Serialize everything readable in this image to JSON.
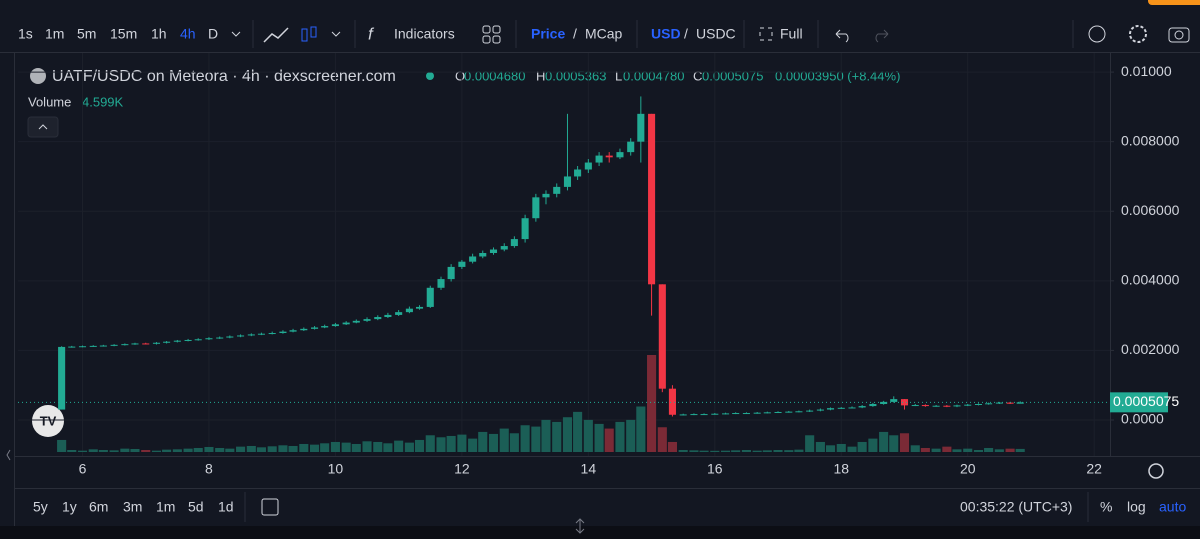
{
  "toolbar": {
    "intervals": [
      "1s",
      "1m",
      "5m",
      "15m",
      "1h",
      "4h",
      "D"
    ],
    "active_interval": "4h",
    "indicators": "Indicators",
    "price": "Price",
    "slash": "/",
    "mcap": "MCap",
    "usd": "USD",
    "usdc": "USDC",
    "full": "Full"
  },
  "legend": {
    "title": "UATF/USDC on Meteora · 4h · dexscreener.com",
    "o_key": "O",
    "o": "0.0004680",
    "h_key": "H",
    "h": "0.0005363",
    "l_key": "L",
    "l": "0.0004780",
    "c_key": "C",
    "c": "0.0005075",
    "change": "0.00003950 (+8.44%)",
    "volume_key": "Volume",
    "volume": "4.599K"
  },
  "price_tag": "0.0005075",
  "bottom_bar": {
    "ranges": [
      "5y",
      "1y",
      "6m",
      "3m",
      "1m",
      "5d",
      "1d"
    ],
    "clock": "00:35:22 (UTC+3)",
    "percent": "%",
    "log": "log",
    "auto": "auto"
  },
  "chart_data": {
    "type": "candlestick",
    "up_color": "#22ab94",
    "down_color": "#f23645",
    "volume_up_color": "#1b5e56",
    "volume_down_color": "#7b2a36",
    "xlim": [
      4.98,
      22.25
    ],
    "xticks": [
      6,
      8,
      10,
      12,
      14,
      16,
      18,
      20,
      22
    ],
    "ylim": [
      -0.00092,
      0.01029
    ],
    "yticks": [
      {
        "value": 0,
        "label": "0.0000"
      },
      {
        "value": 0.002,
        "label": "0.002000"
      },
      {
        "value": 0.004,
        "label": "0.004000"
      },
      {
        "value": 0.006,
        "label": "0.006000"
      },
      {
        "value": 0.008,
        "label": "0.008000"
      },
      {
        "value": 0.01,
        "label": "0.01000"
      }
    ],
    "x": [
      5.67,
      5.83,
      6.0,
      6.17,
      6.33,
      6.5,
      6.67,
      6.83,
      7.0,
      7.17,
      7.33,
      7.5,
      7.67,
      7.83,
      8.0,
      8.17,
      8.33,
      8.5,
      8.67,
      8.83,
      9.0,
      9.17,
      9.33,
      9.5,
      9.67,
      9.83,
      10.0,
      10.17,
      10.33,
      10.5,
      10.67,
      10.83,
      11.0,
      11.17,
      11.33,
      11.5,
      11.67,
      11.83,
      12.0,
      12.17,
      12.33,
      12.5,
      12.67,
      12.83,
      13.0,
      13.17,
      13.33,
      13.5,
      13.67,
      13.83,
      14.0,
      14.17,
      14.33,
      14.5,
      14.67,
      14.83,
      15.0,
      15.17,
      15.33,
      15.5,
      15.67,
      15.83,
      16.0,
      16.17,
      16.33,
      16.5,
      16.67,
      16.83,
      17.0,
      17.17,
      17.33,
      17.5,
      17.67,
      17.83,
      18.0,
      18.17,
      18.33,
      18.5,
      18.67,
      18.83,
      19.0,
      19.17,
      19.33,
      19.5,
      19.67,
      19.83,
      20.0,
      20.17,
      20.33,
      20.5,
      20.67,
      20.83
    ],
    "open": [
      0.0003,
      0.0021,
      0.00211,
      0.00212,
      0.00213,
      0.00214,
      0.00216,
      0.00218,
      0.0022,
      0.00219,
      0.00222,
      0.00225,
      0.00228,
      0.0023,
      0.00232,
      0.00235,
      0.00237,
      0.0024,
      0.00243,
      0.00246,
      0.00248,
      0.0025,
      0.00254,
      0.00258,
      0.00262,
      0.00266,
      0.0027,
      0.00275,
      0.0028,
      0.00285,
      0.0029,
      0.00296,
      0.00302,
      0.0031,
      0.0032,
      0.00325,
      0.0038,
      0.00405,
      0.0044,
      0.00455,
      0.0047,
      0.0048,
      0.0049,
      0.005,
      0.0052,
      0.0058,
      0.0064,
      0.0065,
      0.0067,
      0.007,
      0.0072,
      0.0074,
      0.0076,
      0.00755,
      0.0077,
      0.008,
      0.0088,
      0.0039,
      0.0009,
      0.00015,
      0.00016,
      0.00017,
      0.00017,
      0.00018,
      0.00019,
      0.0002,
      0.0002,
      0.00021,
      0.00022,
      0.00023,
      0.00024,
      0.00025,
      0.00027,
      0.0003,
      0.00034,
      0.00035,
      0.00036,
      0.0004,
      0.00046,
      0.00052,
      0.0006,
      0.00042,
      0.00043,
      0.0004,
      0.00041,
      0.00039,
      0.00042,
      0.00044,
      0.00046,
      0.00048,
      0.0005,
      0.000468
    ],
    "high": [
      0.00212,
      0.00213,
      0.00214,
      0.00215,
      0.00216,
      0.00218,
      0.0022,
      0.00222,
      0.00222,
      0.00224,
      0.00227,
      0.0023,
      0.00233,
      0.00235,
      0.00238,
      0.0024,
      0.00243,
      0.00246,
      0.00249,
      0.00251,
      0.00254,
      0.00258,
      0.00262,
      0.00266,
      0.0027,
      0.00274,
      0.00279,
      0.00284,
      0.00289,
      0.00295,
      0.00301,
      0.00308,
      0.00316,
      0.00326,
      0.0033,
      0.00386,
      0.00412,
      0.00448,
      0.0046,
      0.00478,
      0.00487,
      0.00496,
      0.00508,
      0.00528,
      0.0059,
      0.0065,
      0.0066,
      0.0068,
      0.0088,
      0.0073,
      0.0075,
      0.0077,
      0.0077,
      0.0078,
      0.0081,
      0.0093,
      0.0088,
      0.0039,
      0.001,
      0.00018,
      0.00019,
      0.00019,
      0.0002,
      0.00021,
      0.00022,
      0.00022,
      0.00023,
      0.00024,
      0.00025,
      0.00026,
      0.00027,
      0.0003,
      0.00033,
      0.00036,
      0.00037,
      0.00039,
      0.00043,
      0.00049,
      0.00055,
      0.00068,
      0.0006,
      0.00046,
      0.00045,
      0.00043,
      0.00043,
      0.00044,
      0.00046,
      0.00048,
      0.0005,
      0.00052,
      0.00052,
      0.0005363
    ],
    "low": [
      0.0003,
      0.00208,
      0.00209,
      0.0021,
      0.00211,
      0.00212,
      0.00214,
      0.00216,
      0.00217,
      0.00217,
      0.0022,
      0.00223,
      0.00226,
      0.00228,
      0.0023,
      0.00233,
      0.00235,
      0.00238,
      0.00241,
      0.00244,
      0.00246,
      0.00248,
      0.00252,
      0.00256,
      0.0026,
      0.00264,
      0.00268,
      0.00273,
      0.00278,
      0.00282,
      0.00287,
      0.00293,
      0.00299,
      0.00307,
      0.00317,
      0.00322,
      0.00374,
      0.00398,
      0.00434,
      0.0045,
      0.00465,
      0.00475,
      0.00485,
      0.00495,
      0.0051,
      0.0057,
      0.0062,
      0.0064,
      0.0066,
      0.0069,
      0.0071,
      0.0073,
      0.0074,
      0.0075,
      0.0076,
      0.0074,
      0.003,
      0.0008,
      0.0001,
      0.00013,
      0.00014,
      0.00015,
      0.00015,
      0.00016,
      0.00017,
      0.00018,
      0.00018,
      0.00019,
      0.0002,
      0.00021,
      0.00022,
      0.00023,
      0.00025,
      0.00028,
      0.00032,
      0.00033,
      0.00034,
      0.00038,
      0.00044,
      0.0005,
      0.0003,
      0.0004,
      0.00038,
      0.00038,
      0.00037,
      0.00037,
      0.0004,
      0.00042,
      0.00044,
      0.00046,
      0.00046,
      0.000478
    ],
    "close": [
      0.0021,
      0.00211,
      0.00212,
      0.00213,
      0.00214,
      0.00216,
      0.00218,
      0.0022,
      0.00219,
      0.00222,
      0.00225,
      0.00228,
      0.0023,
      0.00232,
      0.00235,
      0.00237,
      0.0024,
      0.00243,
      0.00246,
      0.00248,
      0.0025,
      0.00254,
      0.00258,
      0.00262,
      0.00266,
      0.0027,
      0.00275,
      0.0028,
      0.00285,
      0.0029,
      0.00296,
      0.00302,
      0.0031,
      0.0032,
      0.00325,
      0.0038,
      0.00405,
      0.0044,
      0.00455,
      0.0047,
      0.0048,
      0.0049,
      0.005,
      0.0052,
      0.0058,
      0.0064,
      0.0065,
      0.0067,
      0.007,
      0.0072,
      0.0074,
      0.0076,
      0.00755,
      0.0077,
      0.008,
      0.0088,
      0.0039,
      0.0009,
      0.00015,
      0.00016,
      0.00017,
      0.00017,
      0.00018,
      0.00019,
      0.0002,
      0.0002,
      0.00021,
      0.00022,
      0.00023,
      0.00024,
      0.00025,
      0.00027,
      0.0003,
      0.00034,
      0.00035,
      0.00036,
      0.0004,
      0.00046,
      0.00052,
      0.0006,
      0.00042,
      0.00043,
      0.0004,
      0.00041,
      0.00039,
      0.00042,
      0.00044,
      0.00046,
      0.00048,
      0.0005,
      0.000468,
      0.0005075
    ],
    "volume": [
      18000,
      3000,
      2000,
      4000,
      3000,
      2500,
      5000,
      4500,
      3000,
      2000,
      3500,
      4000,
      5000,
      6000,
      7500,
      6000,
      5000,
      8000,
      9000,
      7000,
      8500,
      10000,
      9000,
      12000,
      11000,
      13000,
      15000,
      14000,
      12000,
      16000,
      15000,
      13000,
      17000,
      14000,
      18000,
      25000,
      22000,
      24000,
      26000,
      20000,
      30000,
      27000,
      35000,
      28000,
      40000,
      38000,
      48000,
      45000,
      52000,
      60000,
      48000,
      42000,
      35000,
      45000,
      48000,
      68000,
      145000,
      37000,
      15000,
      3000,
      2500,
      2000,
      1800,
      2000,
      2500,
      3000,
      2000,
      2500,
      3000,
      2800,
      3500,
      25000,
      15000,
      10000,
      12000,
      8000,
      15000,
      20000,
      30000,
      25000,
      28000,
      10000,
      6000,
      5000,
      8000,
      4000,
      5000,
      3000,
      6000,
      4000,
      5000,
      4599
    ]
  }
}
